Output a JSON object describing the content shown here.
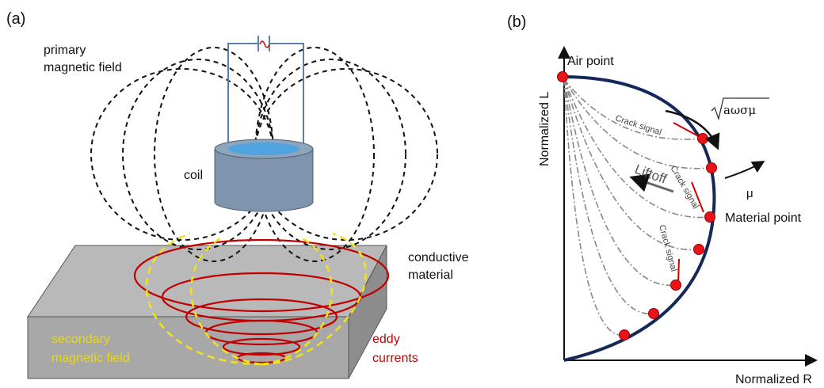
{
  "panel_a": {
    "label": "(a)",
    "primary_field": [
      "primary",
      "magnetic field"
    ],
    "coil": "coil",
    "material": [
      "conductive",
      "material"
    ],
    "secondary_field": [
      "secondary",
      "magnetic field"
    ],
    "eddy_currents": [
      "eddy",
      "currents"
    ]
  },
  "panel_b": {
    "label": "(b)",
    "y_axis": "Normalized L",
    "x_axis": "Normalized R",
    "air_point": "Air point",
    "material_point": "Material point",
    "crack_signals": [
      "Crack signal",
      "Crack signal",
      "Crack signal"
    ],
    "liftoff": "Liftoff",
    "frequency_term": "aωσμ",
    "mu": "μ"
  }
}
